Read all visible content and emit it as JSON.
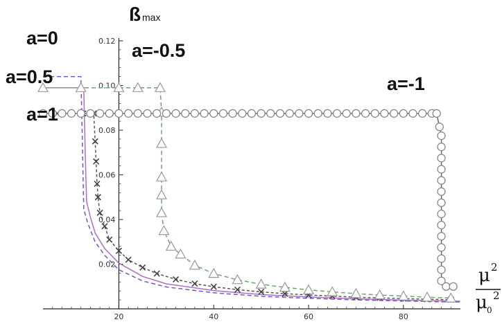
{
  "chart_data": {
    "type": "line",
    "xlim": [
      4,
      92
    ],
    "ylim": [
      0,
      0.12
    ],
    "x_ticks": [
      20,
      40,
      60,
      80
    ],
    "x_tick_labels": [
      "20",
      "40",
      "60",
      "80"
    ],
    "y_ticks": [
      0.02,
      0.04,
      0.06,
      0.08,
      0.1,
      0.12
    ],
    "y_tick_labels": [
      "0.02",
      "0.04",
      "0.06",
      "0.08",
      "0.10",
      "0.12"
    ],
    "ylabel": {
      "main": "ß",
      "sub": "max"
    },
    "xlabel": {
      "num": "μ",
      "num_sup": "2",
      "den": "μ",
      "den_sub": "0",
      "den_sup": "2"
    },
    "grid": false,
    "series": [
      {
        "name": "a=0",
        "color": "#6a5acd",
        "dash": "6,4",
        "marker": "none",
        "x": [
          4,
          8,
          12,
          12.3,
          12.6,
          13.5,
          15,
          17,
          20,
          25,
          30,
          40,
          50,
          60,
          70,
          80,
          92
        ],
        "y": [
          0.104,
          0.104,
          0.104,
          0.075,
          0.0445,
          0.038,
          0.03,
          0.024,
          0.0175,
          0.0125,
          0.0098,
          0.0072,
          0.0056,
          0.0047,
          0.004,
          0.0035,
          0.003
        ]
      },
      {
        "name": "a=0.5",
        "color": "#b06cc8",
        "dash": "",
        "marker": "none",
        "x": [
          4,
          8,
          12.6,
          12.9,
          13.2,
          14,
          15,
          17,
          20,
          25,
          30,
          40,
          50,
          60,
          70,
          80,
          92
        ],
        "y": [
          0.099,
          0.099,
          0.099,
          0.07,
          0.048,
          0.041,
          0.034,
          0.027,
          0.0205,
          0.0145,
          0.0112,
          0.0082,
          0.0064,
          0.0053,
          0.0045,
          0.0039,
          0.0034
        ]
      },
      {
        "name": "a=1",
        "color": "#555555",
        "dash": "4,3",
        "marker": "x",
        "x": [
          4,
          7,
          10,
          12.5,
          14.7,
          15,
          15.2,
          15.4,
          15.6,
          16,
          17,
          18,
          20,
          22,
          25,
          28,
          32,
          36,
          40,
          45,
          50,
          55,
          60,
          65,
          70,
          75,
          80,
          85,
          90
        ],
        "y": [
          0.0875,
          0.0875,
          0.0875,
          0.0875,
          0.0875,
          0.075,
          0.066,
          0.056,
          0.05,
          0.043,
          0.037,
          0.031,
          0.026,
          0.022,
          0.0185,
          0.0158,
          0.0132,
          0.0113,
          0.0099,
          0.0086,
          0.0076,
          0.0068,
          0.0062,
          0.0057,
          0.0052,
          0.0049,
          0.0046,
          0.0043,
          0.0041
        ]
      },
      {
        "name": "a=-0.5",
        "color": "#6aa86a",
        "dash": "6,4",
        "marker": "triangle",
        "x": [
          4,
          12,
          20,
          24,
          28.7,
          29,
          29,
          29,
          29,
          29,
          29.5,
          31,
          33,
          36,
          40,
          45,
          50,
          55,
          60,
          65,
          70,
          75,
          80,
          85,
          90
        ],
        "y": [
          0.099,
          0.099,
          0.099,
          0.099,
          0.099,
          0.088,
          0.074,
          0.059,
          0.051,
          0.043,
          0.035,
          0.028,
          0.0245,
          0.0195,
          0.0158,
          0.013,
          0.011,
          0.0096,
          0.0085,
          0.0076,
          0.0068,
          0.0062,
          0.0057,
          0.0052,
          0.0048
        ]
      },
      {
        "name": "a=-1",
        "color": "#5a6a8a",
        "dash": "",
        "marker": "circle",
        "x": [
          4,
          6,
          8,
          10,
          12,
          14,
          16,
          18,
          20,
          22,
          24,
          26,
          28,
          30,
          32,
          34,
          36,
          38,
          40,
          42,
          44,
          46,
          48,
          50,
          52,
          54,
          56,
          58,
          60,
          62,
          64,
          66,
          68,
          70,
          72,
          74,
          76,
          78,
          80,
          82,
          84,
          86,
          87,
          87.6,
          88,
          88,
          88,
          88,
          88,
          88,
          88,
          88,
          88,
          88,
          88,
          88,
          88,
          88,
          89,
          90.5
        ],
        "y": [
          0.0875,
          0.0875,
          0.0875,
          0.0875,
          0.0875,
          0.0875,
          0.0875,
          0.0875,
          0.0875,
          0.0875,
          0.0875,
          0.0875,
          0.0875,
          0.0875,
          0.0875,
          0.0875,
          0.0875,
          0.0875,
          0.0875,
          0.0875,
          0.0875,
          0.0875,
          0.0875,
          0.0875,
          0.0875,
          0.0875,
          0.0875,
          0.0875,
          0.0875,
          0.0875,
          0.0875,
          0.0875,
          0.0875,
          0.0875,
          0.0875,
          0.0875,
          0.0875,
          0.0875,
          0.0875,
          0.0875,
          0.0875,
          0.0875,
          0.0875,
          0.0815,
          0.0775,
          0.0725,
          0.0675,
          0.0625,
          0.0575,
          0.0525,
          0.0475,
          0.0425,
          0.0375,
          0.0325,
          0.0275,
          0.0225,
          0.0175,
          0.0125,
          0.01,
          0.01
        ]
      }
    ],
    "annotations": [
      "a=0",
      "a=0.5",
      "a=1",
      "a=-0.5",
      "a=-1"
    ]
  }
}
